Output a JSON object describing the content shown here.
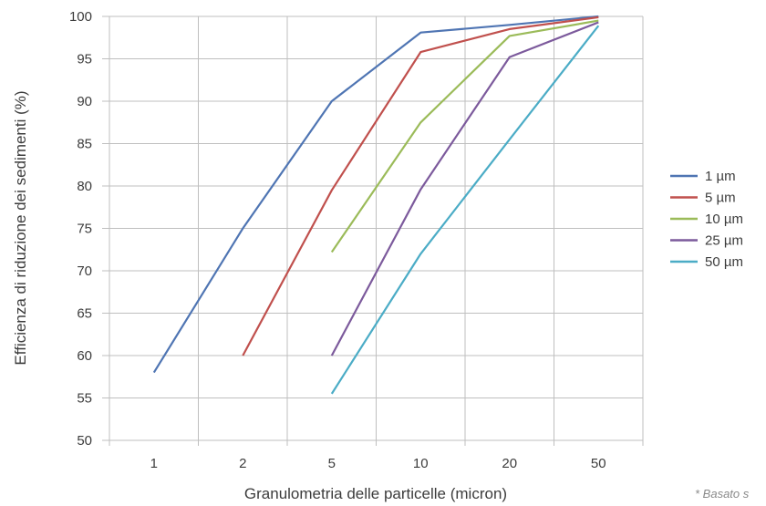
{
  "chart_data": {
    "type": "line",
    "title": "",
    "xlabel": "Granulometria delle particelle (micron)",
    "ylabel": "Efficienza di riduzione dei sedimenti (%)",
    "categories": [
      "1",
      "2",
      "5",
      "10",
      "20",
      "50"
    ],
    "ylim": [
      50,
      100
    ],
    "yticks": [
      "50",
      "55",
      "60",
      "65",
      "70",
      "75",
      "80",
      "85",
      "90",
      "95",
      "100"
    ],
    "grid": true,
    "legend_position": "right",
    "series": [
      {
        "name": "1 µm",
        "color": "#4f75b3",
        "values": [
          58,
          75,
          90,
          98.1,
          99,
          100
        ]
      },
      {
        "name": "5 µm",
        "color": "#c0504d",
        "values": [
          null,
          60,
          79.5,
          95.8,
          98.5,
          99.9
        ]
      },
      {
        "name": "10 µm",
        "color": "#9bbb59",
        "values": [
          null,
          null,
          72.2,
          87.5,
          97.7,
          99.5
        ]
      },
      {
        "name": "25 µm",
        "color": "#7c5a9c",
        "values": [
          null,
          null,
          60,
          79.6,
          95.2,
          99.3
        ]
      },
      {
        "name": "50 µm",
        "color": "#4bacc6",
        "values": [
          null,
          null,
          55.5,
          72,
          85.5,
          98.9
        ]
      }
    ],
    "footnote": "* Basato s"
  }
}
